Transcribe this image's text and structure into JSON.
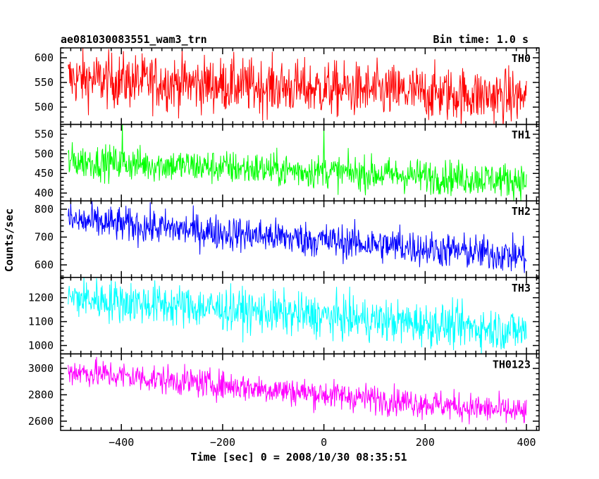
{
  "header": {
    "title": "ae081030083551_wam3_trn",
    "bin_time": "Bin time: 1.0 s"
  },
  "axes": {
    "xlabel": "Time [sec] 0 = 2008/10/30 08:35:51",
    "ylabel": "Counts/sec"
  },
  "chart_data": {
    "type": "line",
    "xlim": [
      -520,
      425
    ],
    "xticks": [
      -400,
      -200,
      0,
      200,
      400
    ],
    "x_range": [
      -505,
      400
    ],
    "bin_size": 1.0,
    "panels": [
      {
        "name": "TH0",
        "color": "#ff0000",
        "ylim": [
          465,
          620
        ],
        "yticks": [
          500,
          550,
          600
        ],
        "trend_start": 558,
        "trend_end": 520,
        "noise": 28,
        "spikes": []
      },
      {
        "name": "TH1",
        "color": "#00ff00",
        "ylim": [
          380,
          575
        ],
        "yticks": [
          400,
          450,
          500,
          550
        ],
        "trend_start": 482,
        "trend_end": 432,
        "noise": 22,
        "spikes": [
          [
            0,
            570
          ],
          [
            -398,
            575
          ]
        ]
      },
      {
        "name": "TH2",
        "color": "#0000ff",
        "ylim": [
          555,
          830
        ],
        "yticks": [
          600,
          700,
          800
        ],
        "trend_start": 760,
        "trend_end": 630,
        "noise": 32,
        "spikes": [
          [
            150,
            745
          ]
        ]
      },
      {
        "name": "TH3",
        "color": "#00ffff",
        "ylim": [
          965,
          1285
        ],
        "yticks": [
          1000,
          1100,
          1200
        ],
        "trend_start": 1200,
        "trend_end": 1060,
        "noise": 45,
        "spikes": []
      },
      {
        "name": "TH0123",
        "color": "#ff00ff",
        "ylim": [
          2530,
          3110
        ],
        "yticks": [
          2600,
          2800,
          3000
        ],
        "trend_start": 2980,
        "trend_end": 2665,
        "noise": 55,
        "spikes": []
      }
    ]
  }
}
